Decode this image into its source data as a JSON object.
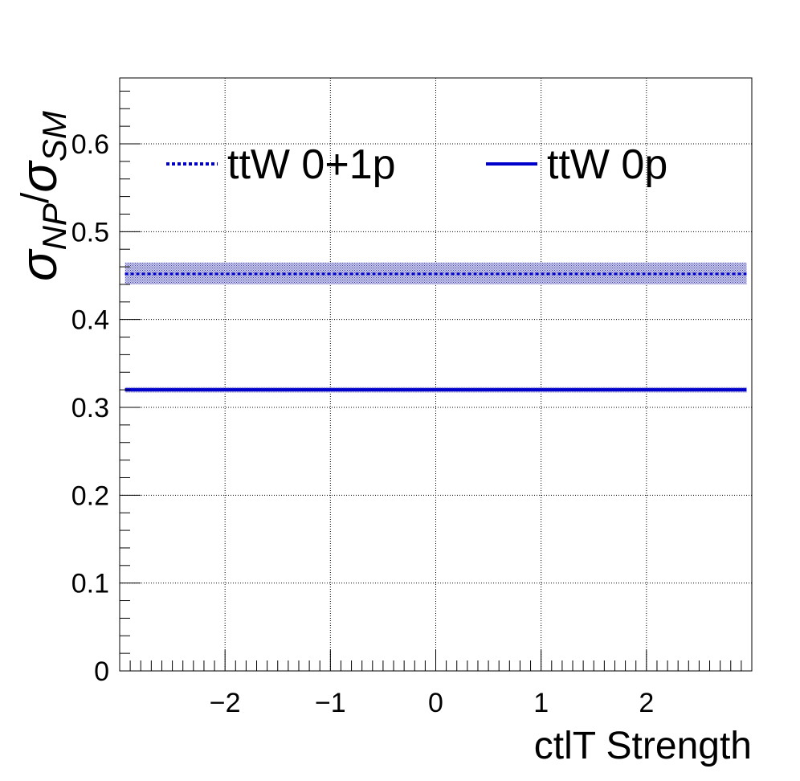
{
  "chart_data": {
    "type": "line",
    "xlabel": "ctlT Strength",
    "ylabel": {
      "sigma": "σ",
      "sub1": "NP",
      "sep": "/",
      "sub2": "SM"
    },
    "xlim": [
      -3,
      3
    ],
    "ylim": [
      0,
      0.675
    ],
    "xticks": [
      -2,
      -1,
      0,
      1,
      2
    ],
    "xtick_labels": [
      "−2",
      "−1",
      "0",
      "1",
      "2"
    ],
    "yticks": [
      0,
      0.1,
      0.2,
      0.3,
      0.4,
      0.5,
      0.6
    ],
    "ytick_labels": [
      "0",
      "0.1",
      "0.2",
      "0.3",
      "0.4",
      "0.5",
      "0.6"
    ],
    "grid": true,
    "legend_position": "top",
    "series": [
      {
        "name": "ttW 0+1p",
        "style": "dotted",
        "color": "#0000cc",
        "x": [
          -2.95,
          2.95
        ],
        "y": [
          0.452,
          0.452
        ],
        "band": [
          0.44,
          0.465
        ]
      },
      {
        "name": "ttW 0p",
        "style": "solid",
        "color": "#0000cc",
        "x": [
          -2.95,
          2.95
        ],
        "y": [
          0.32,
          0.32
        ],
        "band": [
          0.317,
          0.323
        ]
      }
    ]
  }
}
